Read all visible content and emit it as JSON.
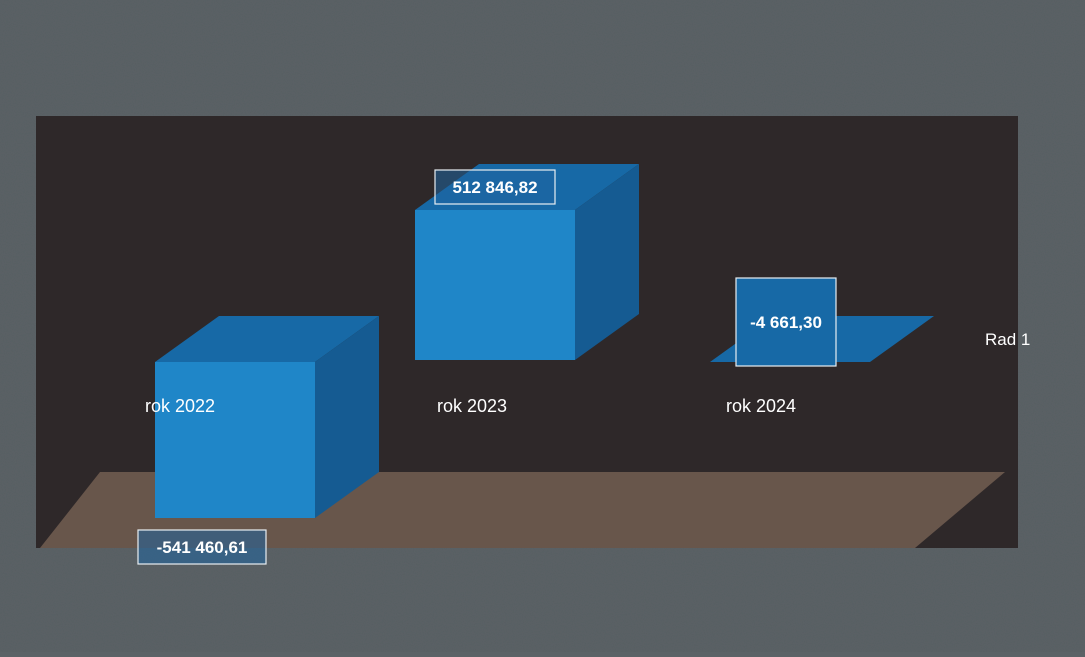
{
  "chart_data": {
    "type": "bar",
    "style": "3d-column",
    "categories": [
      "rok 2022",
      "rok 2023",
      "rok 2024"
    ],
    "series": [
      {
        "name": "Rad 1",
        "values": [
          -541460.61,
          512846.82,
          -4661.3
        ],
        "value_labels": [
          "-541 460,61",
          "512 846,82",
          "-4 661,30"
        ]
      }
    ],
    "legend_position": "right",
    "grid": false,
    "title": "",
    "xlabel": "",
    "ylabel": ""
  },
  "colors": {
    "page_background": "#5b6266",
    "back_wall": "#2d2526",
    "floor": "#6e5a4e",
    "bar_front": "#1f86c8",
    "bar_top": "#1769a6",
    "bar_side": "#155b92",
    "text": "#ffffff"
  }
}
